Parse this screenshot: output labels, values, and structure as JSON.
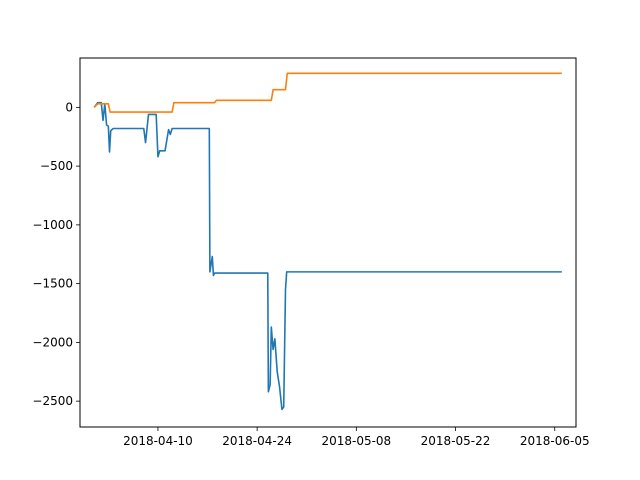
{
  "chart_data": {
    "type": "line",
    "title": "",
    "xlabel": "",
    "ylabel": "",
    "grid": false,
    "legend": "none",
    "xlim": [
      "2018-03-30",
      "2018-06-08"
    ],
    "ylim": [
      -2720,
      420
    ],
    "x_ticks": [
      "2018-04-10",
      "2018-04-24",
      "2018-05-08",
      "2018-05-22",
      "2018-06-05"
    ],
    "y_ticks": [
      0,
      -500,
      -1000,
      -1500,
      -2000,
      -2500
    ],
    "y_tick_labels": [
      "0",
      "−500",
      "−1000",
      "−1500",
      "−2000",
      "−2500"
    ],
    "series": [
      {
        "color": "#1f77b4",
        "points": [
          [
            "2018-04-01",
            0
          ],
          [
            "2018-04-01 12:00",
            40
          ],
          [
            "2018-04-02",
            40
          ],
          [
            "2018-04-02 06:00",
            -110
          ],
          [
            "2018-04-02 12:00",
            30
          ],
          [
            "2018-04-02 18:00",
            -150
          ],
          [
            "2018-04-03",
            -160
          ],
          [
            "2018-04-03 04:00",
            -380
          ],
          [
            "2018-04-03 08:00",
            -200
          ],
          [
            "2018-04-03 16:00",
            -180
          ],
          [
            "2018-04-08",
            -180
          ],
          [
            "2018-04-08 06:00",
            -300
          ],
          [
            "2018-04-08 16:00",
            -60
          ],
          [
            "2018-04-09 18:00",
            -60
          ],
          [
            "2018-04-10",
            -420
          ],
          [
            "2018-04-10 06:00",
            -370
          ],
          [
            "2018-04-11",
            -370
          ],
          [
            "2018-04-11 12:00",
            -190
          ],
          [
            "2018-04-11 18:00",
            -230
          ],
          [
            "2018-04-12",
            -180
          ],
          [
            "2018-04-17 06:00",
            -180
          ],
          [
            "2018-04-17 08:00",
            -1400
          ],
          [
            "2018-04-17 16:00",
            -1270
          ],
          [
            "2018-04-17 20:00",
            -1430
          ],
          [
            "2018-04-18",
            -1410
          ],
          [
            "2018-04-25 12:00",
            -1410
          ],
          [
            "2018-04-25 14:00",
            -2420
          ],
          [
            "2018-04-25 20:00",
            -2360
          ],
          [
            "2018-04-26",
            -1870
          ],
          [
            "2018-04-26 06:00",
            -2060
          ],
          [
            "2018-04-26 12:00",
            -1970
          ],
          [
            "2018-04-26 20:00",
            -2250
          ],
          [
            "2018-04-27 04:00",
            -2380
          ],
          [
            "2018-04-27 12:00",
            -2570
          ],
          [
            "2018-04-27 18:00",
            -2550
          ],
          [
            "2018-04-28",
            -1550
          ],
          [
            "2018-04-28 04:00",
            -1400
          ],
          [
            "2018-06-06",
            -1400
          ]
        ]
      },
      {
        "color": "#ff7f0e",
        "points": [
          [
            "2018-04-01",
            0
          ],
          [
            "2018-04-01 12:00",
            30
          ],
          [
            "2018-04-03",
            30
          ],
          [
            "2018-04-03 06:00",
            -40
          ],
          [
            "2018-04-12",
            -40
          ],
          [
            "2018-04-12 06:00",
            40
          ],
          [
            "2018-04-18",
            40
          ],
          [
            "2018-04-18 06:00",
            60
          ],
          [
            "2018-04-26",
            60
          ],
          [
            "2018-04-26 06:00",
            150
          ],
          [
            "2018-04-28",
            150
          ],
          [
            "2018-04-28 06:00",
            290
          ],
          [
            "2018-06-06",
            290
          ]
        ]
      }
    ]
  }
}
